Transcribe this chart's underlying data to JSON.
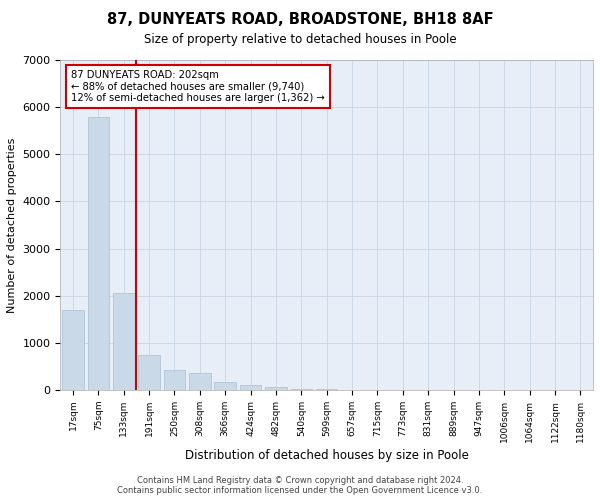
{
  "title": "87, DUNYEATS ROAD, BROADSTONE, BH18 8AF",
  "subtitle": "Size of property relative to detached houses in Poole",
  "xlabel": "Distribution of detached houses by size in Poole",
  "ylabel": "Number of detached properties",
  "footer_line1": "Contains HM Land Registry data © Crown copyright and database right 2024.",
  "footer_line2": "Contains public sector information licensed under the Open Government Licence v3.0.",
  "bar_color": "#c9d9e8",
  "bar_edgecolor": "#a8bfd0",
  "grid_color": "#c8d4e4",
  "background_color": "#e8eef8",
  "categories": [
    "17sqm",
    "75sqm",
    "133sqm",
    "191sqm",
    "250sqm",
    "308sqm",
    "366sqm",
    "424sqm",
    "482sqm",
    "540sqm",
    "599sqm",
    "657sqm",
    "715sqm",
    "773sqm",
    "831sqm",
    "889sqm",
    "947sqm",
    "1006sqm",
    "1064sqm",
    "1122sqm",
    "1180sqm"
  ],
  "values": [
    1700,
    5800,
    2050,
    750,
    430,
    370,
    175,
    100,
    60,
    30,
    15,
    0,
    0,
    0,
    0,
    0,
    0,
    0,
    0,
    0,
    0
  ],
  "red_line_x": 2.5,
  "annotation_text": "87 DUNYEATS ROAD: 202sqm\n← 88% of detached houses are smaller (9,740)\n12% of semi-detached houses are larger (1,362) →",
  "annotation_box_color": "#ffffff",
  "annotation_border_color": "#cc0000",
  "red_line_color": "#cc0000",
  "ylim": [
    0,
    7000
  ],
  "yticks": [
    0,
    1000,
    2000,
    3000,
    4000,
    5000,
    6000,
    7000
  ]
}
